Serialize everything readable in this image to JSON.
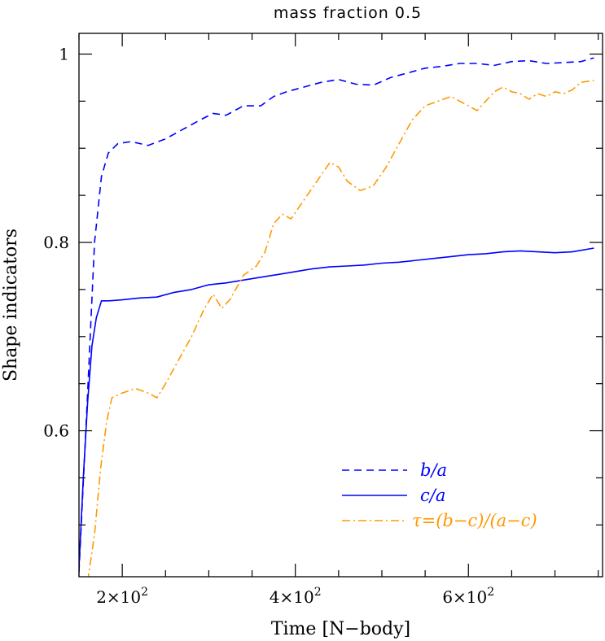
{
  "chart_data": {
    "type": "line",
    "title": "mass fraction 0.5",
    "xlabel": "Time [N−body]",
    "ylabel": "Shape indicators",
    "xlim": [
      150,
      755
    ],
    "ylim": [
      0.445,
      1.022
    ],
    "x_ticks": [
      {
        "value": 200,
        "label": "2×10",
        "exp": "2"
      },
      {
        "value": 400,
        "label": "4×10",
        "exp": "2"
      },
      {
        "value": 600,
        "label": "6×10",
        "exp": "2"
      }
    ],
    "y_ticks": [
      {
        "value": 0.6,
        "label": "0.6"
      },
      {
        "value": 0.8,
        "label": "0.8"
      },
      {
        "value": 1.0,
        "label": "1"
      }
    ],
    "grid": false,
    "legend_position": "bottom-right",
    "series": [
      {
        "name": "b/a",
        "style": "dashed",
        "color": "#0000ff",
        "x": [
          150,
          160,
          168,
          176,
          184,
          195,
          210,
          230,
          250,
          270,
          290,
          305,
          320,
          340,
          360,
          375,
          390,
          410,
          430,
          450,
          470,
          490,
          510,
          530,
          550,
          570,
          590,
          610,
          630,
          650,
          670,
          690,
          710,
          730,
          745
        ],
        "y": [
          0.45,
          0.64,
          0.8,
          0.87,
          0.895,
          0.905,
          0.907,
          0.903,
          0.91,
          0.92,
          0.93,
          0.937,
          0.935,
          0.945,
          0.945,
          0.955,
          0.96,
          0.965,
          0.97,
          0.973,
          0.968,
          0.967,
          0.975,
          0.98,
          0.985,
          0.987,
          0.99,
          0.99,
          0.988,
          0.992,
          0.993,
          0.99,
          0.991,
          0.992,
          0.996
        ]
      },
      {
        "name": "c/a",
        "style": "solid",
        "color": "#0000ff",
        "x": [
          150,
          155,
          160,
          165,
          170,
          176,
          185,
          200,
          220,
          240,
          260,
          280,
          300,
          320,
          340,
          360,
          380,
          400,
          420,
          440,
          460,
          480,
          500,
          520,
          540,
          560,
          580,
          600,
          620,
          640,
          660,
          680,
          700,
          720,
          745
        ],
        "y": [
          0.455,
          0.55,
          0.63,
          0.69,
          0.72,
          0.738,
          0.738,
          0.739,
          0.741,
          0.742,
          0.747,
          0.75,
          0.755,
          0.757,
          0.76,
          0.763,
          0.766,
          0.769,
          0.772,
          0.774,
          0.775,
          0.776,
          0.778,
          0.779,
          0.781,
          0.783,
          0.785,
          0.787,
          0.788,
          0.79,
          0.791,
          0.79,
          0.789,
          0.79,
          0.794
        ]
      },
      {
        "name": "τ=(b−c)/(a−c)",
        "style": "dashdot",
        "color": "#ff9900",
        "x": [
          160,
          168,
          175,
          182,
          188,
          200,
          215,
          230,
          240,
          250,
          265,
          280,
          295,
          305,
          315,
          325,
          340,
          355,
          365,
          375,
          385,
          395,
          410,
          425,
          440,
          450,
          460,
          475,
          490,
          505,
          520,
          535,
          550,
          565,
          580,
          590,
          600,
          610,
          620,
          630,
          640,
          650,
          660,
          670,
          680,
          690,
          700,
          710,
          720,
          730,
          745
        ],
        "y": [
          0.44,
          0.49,
          0.56,
          0.61,
          0.635,
          0.64,
          0.645,
          0.64,
          0.635,
          0.65,
          0.675,
          0.7,
          0.73,
          0.745,
          0.73,
          0.74,
          0.765,
          0.775,
          0.79,
          0.82,
          0.83,
          0.825,
          0.845,
          0.865,
          0.885,
          0.88,
          0.865,
          0.855,
          0.86,
          0.88,
          0.905,
          0.93,
          0.945,
          0.95,
          0.955,
          0.95,
          0.945,
          0.94,
          0.95,
          0.96,
          0.965,
          0.96,
          0.958,
          0.952,
          0.958,
          0.955,
          0.96,
          0.958,
          0.962,
          0.97,
          0.972
        ]
      }
    ]
  },
  "colors": {
    "blue": "#0000ff",
    "orange": "#ff9900"
  }
}
